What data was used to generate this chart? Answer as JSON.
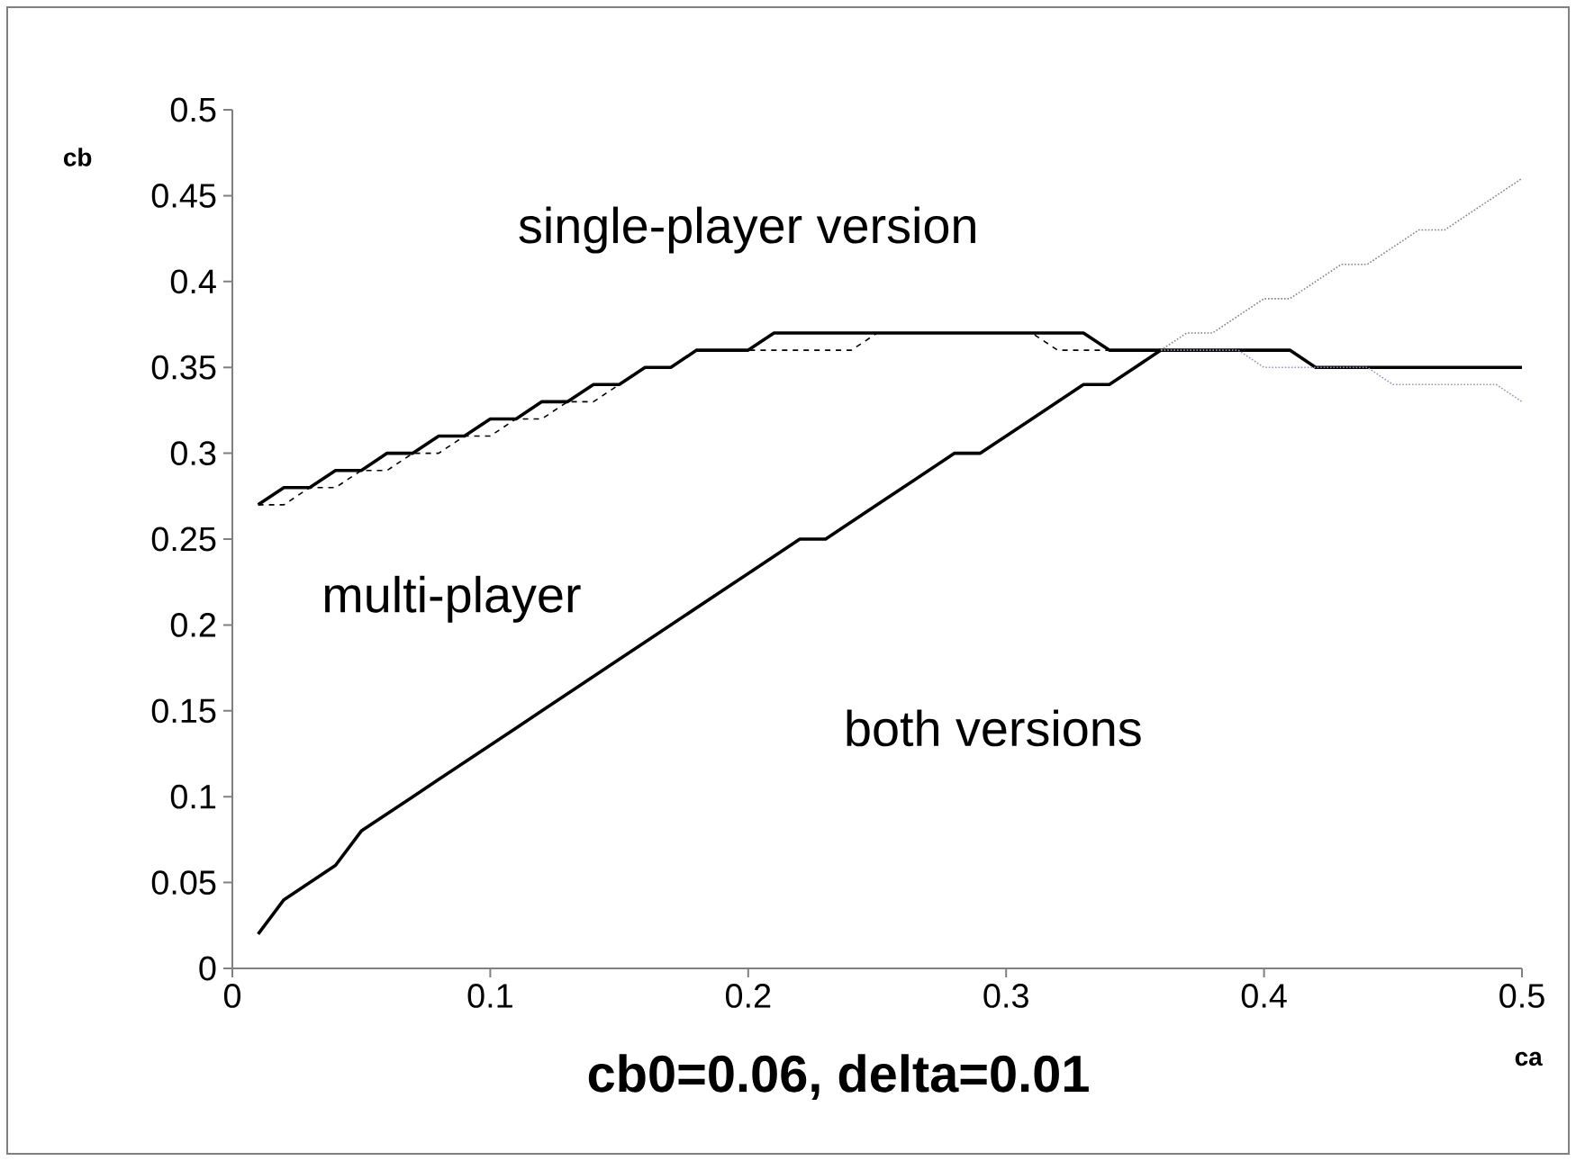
{
  "chart_data": {
    "type": "line",
    "title": "cb0=0.06, delta=0.01",
    "xlabel": "ca",
    "ylabel": "cb",
    "xlim": [
      0,
      0.5
    ],
    "ylim": [
      0,
      0.5
    ],
    "xticks": [
      0,
      0.1,
      0.2,
      0.3,
      0.4,
      0.5
    ],
    "yticks": [
      0,
      0.05,
      0.1,
      0.15,
      0.2,
      0.25,
      0.3,
      0.35,
      0.4,
      0.45,
      0.5
    ],
    "grid": false,
    "marker": "none",
    "annotations": [
      "single-player version",
      "multi-player",
      "both versions"
    ],
    "series": [
      {
        "color": "#000000",
        "line_style": "solid",
        "x": [
          0.01,
          0.02,
          0.03,
          0.04,
          0.05,
          0.06,
          0.07,
          0.08,
          0.09,
          0.1,
          0.11,
          0.12,
          0.13,
          0.14,
          0.15,
          0.16,
          0.17,
          0.18,
          0.19,
          0.2,
          0.21,
          0.22,
          0.23,
          0.24,
          0.25,
          0.26,
          0.27,
          0.28,
          0.29,
          0.3,
          0.31,
          0.32,
          0.33,
          0.34,
          0.35,
          0.36,
          0.37,
          0.38,
          0.39,
          0.4,
          0.41,
          0.42,
          0.43,
          0.44,
          0.45,
          0.46,
          0.47,
          0.48,
          0.49,
          0.5
        ],
        "values": [
          0.27,
          0.28,
          0.28,
          0.29,
          0.29,
          0.3,
          0.3,
          0.31,
          0.31,
          0.32,
          0.32,
          0.33,
          0.33,
          0.34,
          0.34,
          0.35,
          0.35,
          0.36,
          0.36,
          0.36,
          0.37,
          0.37,
          0.37,
          0.37,
          0.37,
          0.37,
          0.37,
          0.37,
          0.37,
          0.37,
          0.37,
          0.37,
          0.37,
          0.36,
          0.36,
          0.36,
          0.36,
          0.36,
          0.36,
          0.36,
          0.36,
          0.35,
          0.35,
          0.35,
          0.35,
          0.35,
          0.35,
          0.35,
          0.35,
          0.35
        ]
      },
      {
        "color": "#000000",
        "line_style": "dashed",
        "x": [
          0.01,
          0.02,
          0.03,
          0.04,
          0.05,
          0.06,
          0.07,
          0.08,
          0.09,
          0.1,
          0.11,
          0.12,
          0.13,
          0.14,
          0.15,
          0.16,
          0.17,
          0.18,
          0.19,
          0.2,
          0.21,
          0.22,
          0.23,
          0.24,
          0.25,
          0.26,
          0.27,
          0.28,
          0.29,
          0.3,
          0.31,
          0.32,
          0.33,
          0.34,
          0.35,
          0.36
        ],
        "values": [
          0.27,
          0.27,
          0.28,
          0.28,
          0.29,
          0.29,
          0.3,
          0.3,
          0.31,
          0.31,
          0.32,
          0.32,
          0.33,
          0.33,
          0.34,
          0.35,
          0.35,
          0.36,
          0.36,
          0.36,
          0.36,
          0.36,
          0.36,
          0.36,
          0.37,
          0.37,
          0.37,
          0.37,
          0.37,
          0.37,
          0.37,
          0.36,
          0.36,
          0.36,
          0.36,
          0.36
        ]
      },
      {
        "color": "#000000",
        "line_style": "solid",
        "x": [
          0.01,
          0.02,
          0.03,
          0.04,
          0.05,
          0.06,
          0.07,
          0.08,
          0.09,
          0.1,
          0.11,
          0.12,
          0.13,
          0.14,
          0.15,
          0.16,
          0.17,
          0.18,
          0.19,
          0.2,
          0.21,
          0.22,
          0.23,
          0.24,
          0.25,
          0.26,
          0.27,
          0.28,
          0.29,
          0.3,
          0.31,
          0.32,
          0.33,
          0.34,
          0.35,
          0.36
        ],
        "values": [
          0.02,
          0.04,
          0.05,
          0.06,
          0.08,
          0.09,
          0.1,
          0.11,
          0.12,
          0.13,
          0.14,
          0.15,
          0.16,
          0.17,
          0.18,
          0.19,
          0.2,
          0.21,
          0.22,
          0.23,
          0.24,
          0.25,
          0.25,
          0.26,
          0.27,
          0.28,
          0.29,
          0.3,
          0.3,
          0.31,
          0.32,
          0.33,
          0.34,
          0.34,
          0.35,
          0.36
        ]
      },
      {
        "color": "#808080",
        "line_style": "dotted",
        "x": [
          0.36,
          0.37,
          0.38,
          0.39,
          0.4,
          0.41,
          0.42,
          0.43,
          0.44,
          0.45,
          0.46,
          0.47,
          0.48,
          0.49,
          0.5
        ],
        "values": [
          0.36,
          0.37,
          0.37,
          0.38,
          0.39,
          0.39,
          0.4,
          0.41,
          0.41,
          0.42,
          0.43,
          0.43,
          0.44,
          0.45,
          0.46
        ]
      },
      {
        "color": "#9a94b8",
        "line_style": "dotted",
        "x": [
          0.36,
          0.37,
          0.38,
          0.39,
          0.4,
          0.41,
          0.42,
          0.43,
          0.44,
          0.45,
          0.46,
          0.47,
          0.48,
          0.49,
          0.5
        ],
        "values": [
          0.36,
          0.36,
          0.36,
          0.36,
          0.35,
          0.35,
          0.35,
          0.35,
          0.35,
          0.34,
          0.34,
          0.34,
          0.34,
          0.34,
          0.33
        ]
      }
    ]
  }
}
